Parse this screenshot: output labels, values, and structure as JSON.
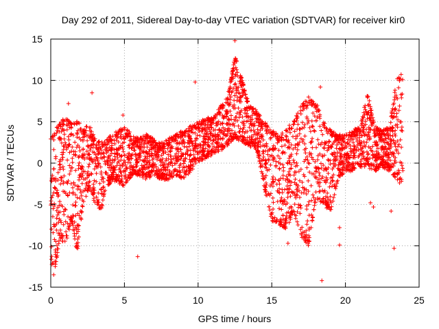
{
  "chart_data": {
    "type": "scatter",
    "title": "Day 292 of 2011, Sidereal Day-to-day VTEC variation (SDTVAR) for receiver kir0",
    "xlabel": "GPS time / hours",
    "ylabel": "SDTVAR / TECUs",
    "xlim": [
      0,
      25
    ],
    "ylim": [
      -15,
      15
    ],
    "xticks": [
      0,
      5,
      10,
      15,
      20,
      25
    ],
    "yticks": [
      -15,
      -10,
      -5,
      0,
      5,
      10,
      15
    ],
    "xtick_labels": [
      "0",
      "5",
      "10",
      "15",
      "20",
      "25"
    ],
    "ytick_labels": [
      "-15",
      "-10",
      "-5",
      "0",
      "5",
      "10",
      "15"
    ],
    "grid": true,
    "legend": false,
    "marker": "+",
    "series_color": "#ff0000",
    "envelope": {
      "x": [
        0,
        0.3,
        0.6,
        1.0,
        1.4,
        1.8,
        2.2,
        2.6,
        3.0,
        3.4,
        3.8,
        4.2,
        4.6,
        5.0,
        5.5,
        6.0,
        6.5,
        7.0,
        7.5,
        8.0,
        8.5,
        9.0,
        9.5,
        10.0,
        10.5,
        11.0,
        11.5,
        12.0,
        12.5,
        13.0,
        13.5,
        14.0,
        14.5,
        15.0,
        15.5,
        16.0,
        16.5,
        17.0,
        17.5,
        18.0,
        18.5,
        19.0,
        19.5,
        20.0,
        20.5,
        21.0,
        21.5,
        22.0,
        22.5,
        23.0,
        23.5,
        23.9
      ],
      "upper": [
        3.0,
        4.0,
        5.0,
        5.5,
        5.0,
        5.5,
        4.0,
        5.0,
        3.0,
        2.5,
        3.0,
        3.5,
        4.0,
        4.5,
        3.5,
        3.0,
        3.5,
        3.0,
        2.5,
        3.0,
        3.5,
        4.0,
        4.5,
        5.0,
        5.5,
        5.5,
        7.0,
        8.0,
        13.0,
        10.0,
        7.0,
        6.5,
        5.0,
        4.0,
        3.5,
        4.0,
        5.5,
        7.0,
        8.0,
        7.5,
        5.0,
        4.0,
        3.5,
        3.5,
        4.0,
        4.5,
        8.5,
        4.5,
        4.0,
        4.5,
        10.5,
        11.0
      ],
      "lower": [
        -12.0,
        -13.0,
        -9.0,
        -10.0,
        -7.0,
        -11.0,
        -5.0,
        -3.0,
        -5.0,
        -6.0,
        -3.0,
        -2.0,
        -2.5,
        -3.0,
        -1.5,
        -1.5,
        -2.0,
        -1.5,
        -2.0,
        -2.0,
        -1.5,
        -2.0,
        -1.0,
        0.0,
        0.5,
        1.0,
        1.5,
        2.0,
        3.0,
        2.5,
        2.0,
        1.5,
        -3.0,
        -7.0,
        -7.5,
        -8.0,
        -6.0,
        -9.0,
        -10.0,
        -4.5,
        -5.0,
        -6.0,
        -2.0,
        -1.0,
        -1.0,
        -0.5,
        -0.5,
        -1.0,
        -0.5,
        -1.0,
        -2.0,
        -3.0
      ]
    },
    "outliers": [
      {
        "x": 5.9,
        "y": -11.3
      },
      {
        "x": 9.8,
        "y": 9.8
      },
      {
        "x": 12.5,
        "y": 14.8
      },
      {
        "x": 18.4,
        "y": -14.2
      },
      {
        "x": 18.3,
        "y": 9.2
      },
      {
        "x": 19.6,
        "y": -7.8
      },
      {
        "x": 19.6,
        "y": -9.9
      },
      {
        "x": 21.9,
        "y": -5.3
      },
      {
        "x": 21.7,
        "y": -4.8
      },
      {
        "x": 23.1,
        "y": -5.8
      },
      {
        "x": 23.3,
        "y": -10.3
      },
      {
        "x": 1.2,
        "y": 7.2
      },
      {
        "x": 2.8,
        "y": 8.5
      },
      {
        "x": 4.9,
        "y": 5.8
      },
      {
        "x": 0.2,
        "y": -13.5
      },
      {
        "x": 16.1,
        "y": -9.7
      }
    ]
  }
}
